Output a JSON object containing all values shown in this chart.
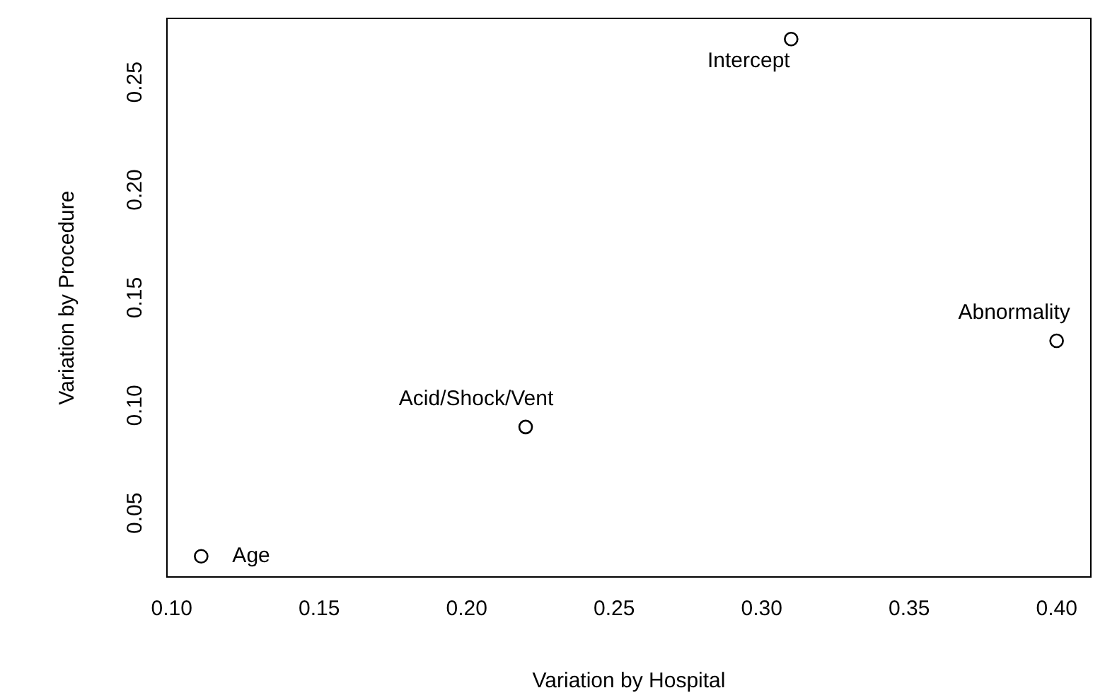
{
  "chart_data": {
    "type": "scatter",
    "xlabel": "Variation by Hospital",
    "ylabel": "Variation by Procedure",
    "x": [
      0.11,
      0.22,
      0.31,
      0.4
    ],
    "values": [
      0.03,
      0.09,
      0.27,
      0.13
    ],
    "color": "#000000",
    "marker": "circle",
    "grid": false,
    "legend": false,
    "xlim": [
      0.0984,
      0.4116
    ],
    "ylim": [
      0.0204,
      0.2796
    ],
    "xticks": [
      {
        "value": 0.1,
        "label": "0.10"
      },
      {
        "value": 0.15,
        "label": "0.15"
      },
      {
        "value": 0.2,
        "label": "0.20"
      },
      {
        "value": 0.25,
        "label": "0.25"
      },
      {
        "value": 0.3,
        "label": "0.30"
      },
      {
        "value": 0.35,
        "label": "0.35"
      },
      {
        "value": 0.4,
        "label": "0.40"
      }
    ],
    "yticks": [
      {
        "value": 0.05,
        "label": "0.05"
      },
      {
        "value": 0.1,
        "label": "0.10"
      },
      {
        "value": 0.15,
        "label": "0.15"
      },
      {
        "value": 0.2,
        "label": "0.20"
      },
      {
        "value": 0.25,
        "label": "0.25"
      }
    ],
    "annotations": [
      {
        "text": "Age",
        "x": 0.11,
        "y": 0.03
      },
      {
        "text": "Acid/Shock/Vent",
        "x": 0.22,
        "y": 0.09
      },
      {
        "text": "Intercept",
        "x": 0.31,
        "y": 0.27
      },
      {
        "text": "Abnormality",
        "x": 0.4,
        "y": 0.13
      }
    ]
  }
}
